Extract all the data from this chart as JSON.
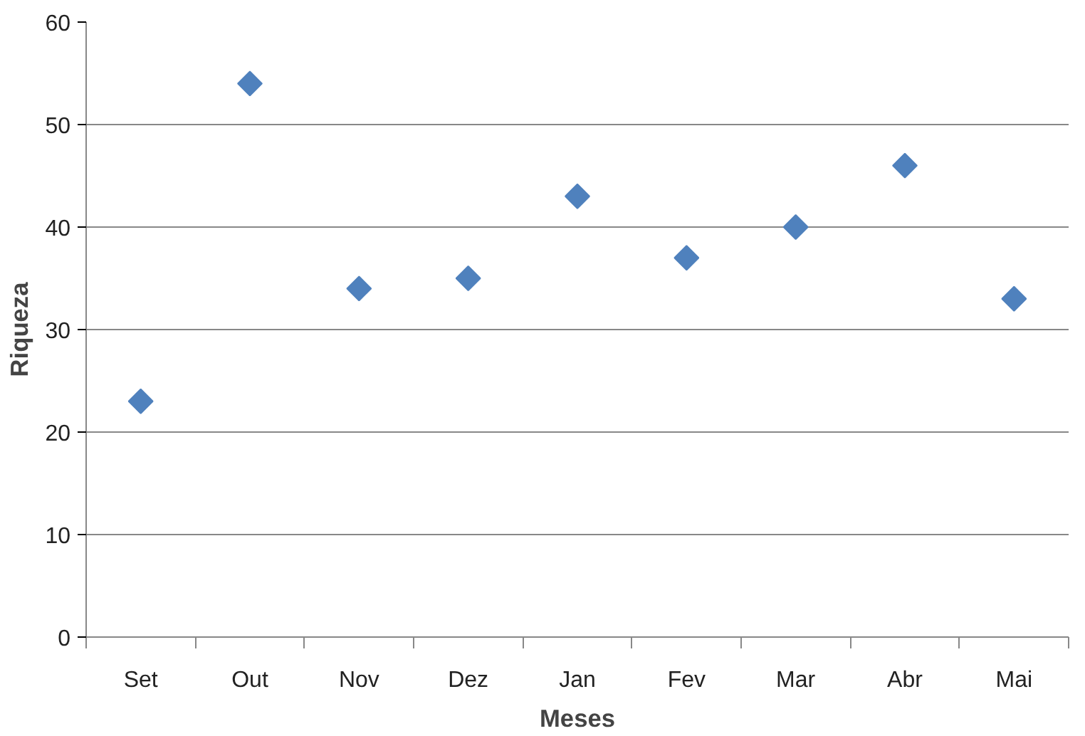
{
  "chart_data": {
    "type": "scatter",
    "xlabel": "Meses",
    "ylabel": "Riqueza",
    "categories": [
      "Set",
      "Out",
      "Nov",
      "Dez",
      "Jan",
      "Fev",
      "Mar",
      "Abr",
      "Mai"
    ],
    "values": [
      23,
      54,
      34,
      35,
      43,
      37,
      40,
      46,
      33
    ],
    "color": "#4f81bd",
    "marker": "diamond",
    "ylim": [
      0,
      60
    ],
    "yticks": [
      0,
      10,
      20,
      30,
      40,
      50,
      60
    ],
    "grid": "y"
  }
}
